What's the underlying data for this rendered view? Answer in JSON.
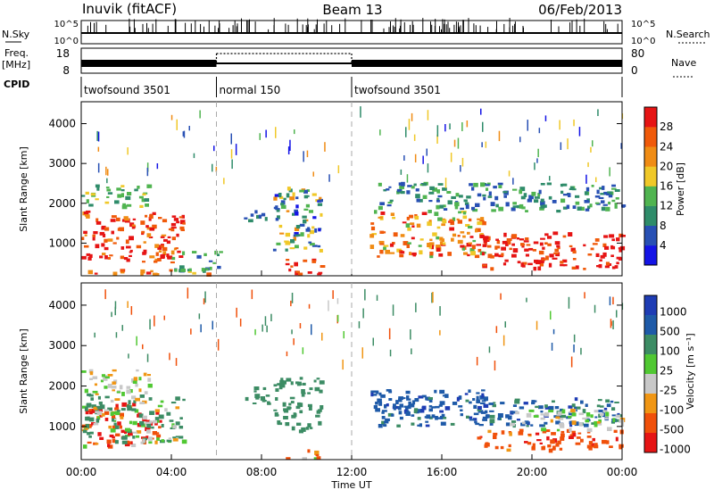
{
  "header": {
    "station": "Inuvik (fitACF)",
    "beam": "Beam 13",
    "date": "06/Feb/2013"
  },
  "top_panels": {
    "nsky_label": "N.Sky",
    "nsky_ticks": [
      "10^5",
      "10^0"
    ],
    "nsearch_label": "N.Search",
    "nsearch_ticks": [
      "10^5",
      "10^0"
    ],
    "freq_label": "Freq.",
    "freq_unit": "[MHz]",
    "freq_ticks": [
      "18",
      "8"
    ],
    "nave_label": "Nave",
    "nave_ticks": [
      "80",
      "0"
    ],
    "cpid_label": "CPID",
    "cpid_segments": [
      {
        "name": "twofsound 3501",
        "start": 0,
        "end": 6
      },
      {
        "name": "normal 150",
        "start": 6,
        "end": 12
      },
      {
        "name": "twofsound 3501",
        "start": 12,
        "end": 24
      }
    ]
  },
  "x_axis": {
    "label": "Time UT",
    "ticks": [
      "00:00",
      "04:00",
      "08:00",
      "12:00",
      "16:00",
      "20:00",
      "00:00"
    ]
  },
  "colors": {
    "power": [
      "#1414e6",
      "#2850b4",
      "#2f8c6a",
      "#50b450",
      "#f0c828",
      "#f08c14",
      "#f05a0a",
      "#e61414"
    ],
    "velocity": [
      "#e61414",
      "#f0500a",
      "#f09614",
      "#c8c8c8",
      "#50c832",
      "#3c8c64",
      "#1e5aa8",
      "#1e3cb4"
    ]
  },
  "chart_data": [
    {
      "type": "heatmap",
      "quantity": "Power",
      "ylabel": "Slant Range [km]",
      "xlabel": "",
      "colorbar_label": "Power [dB]",
      "colorbar_ticks": [
        "28",
        "24",
        "20",
        "16",
        "12",
        "8",
        "4"
      ],
      "y_ticks": [
        "1000",
        "2000",
        "3000",
        "4000"
      ],
      "xlim_hours": [
        0,
        24
      ],
      "ylim_km": [
        180,
        4550
      ],
      "zlim": [
        0,
        32
      ],
      "scatter_regions": [
        {
          "t": [
            0.0,
            4.5
          ],
          "r": [
            500,
            1800
          ],
          "level": 28,
          "spread": 6
        },
        {
          "t": [
            0.0,
            3.0
          ],
          "r": [
            1900,
            2450
          ],
          "level": 14,
          "spread": 6
        },
        {
          "t": [
            0.0,
            6.0
          ],
          "r": [
            200,
            320
          ],
          "level": 24,
          "spread": 6
        },
        {
          "t": [
            4.0,
            6.2
          ],
          "r": [
            300,
            800
          ],
          "level": 10,
          "spread": 6
        },
        {
          "t": [
            7.2,
            8.7
          ],
          "r": [
            1550,
            1950
          ],
          "level": 6,
          "spread": 4
        },
        {
          "t": [
            8.5,
            10.6
          ],
          "r": [
            800,
            2400
          ],
          "level": 12,
          "spread": 10
        },
        {
          "t": [
            9.0,
            10.7
          ],
          "r": [
            200,
            600
          ],
          "level": 28,
          "spread": 4
        },
        {
          "t": [
            12.8,
            17.8
          ],
          "r": [
            650,
            1800
          ],
          "level": 22,
          "spread": 8
        },
        {
          "t": [
            13.0,
            24.0
          ],
          "r": [
            1800,
            2500
          ],
          "level": 10,
          "spread": 6
        },
        {
          "t": [
            17.5,
            24.0
          ],
          "r": [
            350,
            1250
          ],
          "level": 29,
          "spread": 3
        },
        {
          "t": [
            0.5,
            24.0
          ],
          "r": [
            2500,
            4300
          ],
          "level": 12,
          "spread": 10
        }
      ]
    },
    {
      "type": "heatmap",
      "quantity": "Velocity",
      "ylabel": "Slant Range [km]",
      "xlabel": "Time UT",
      "colorbar_label": "Velocity [m s⁻¹]",
      "colorbar_ticks": [
        "1000",
        "500",
        "100",
        "25",
        "-25",
        "-100",
        "-500",
        "-1000"
      ],
      "y_ticks": [
        "1000",
        "2000",
        "3000",
        "4000"
      ],
      "xlim_hours": [
        0,
        24
      ],
      "ylim_km": [
        180,
        4550
      ],
      "zlim": [
        -1200,
        1200
      ],
      "scatter_regions": [
        {
          "t": [
            0.0,
            3.5
          ],
          "r": [
            500,
            1600
          ],
          "level": -400,
          "spread": 500
        },
        {
          "t": [
            0.0,
            4.5
          ],
          "r": [
            600,
            1800
          ],
          "level": 120,
          "spread": 200
        },
        {
          "t": [
            0.0,
            3.0
          ],
          "r": [
            1800,
            2400
          ],
          "level": 20,
          "spread": 80
        },
        {
          "t": [
            7.2,
            8.7
          ],
          "r": [
            1550,
            1950
          ],
          "level": 350,
          "spread": 150
        },
        {
          "t": [
            8.5,
            10.6
          ],
          "r": [
            800,
            2200
          ],
          "level": 300,
          "spread": 150
        },
        {
          "t": [
            9.0,
            10.5
          ],
          "r": [
            200,
            400
          ],
          "level": -150,
          "spread": 200
        },
        {
          "t": [
            12.8,
            18.0
          ],
          "r": [
            1300,
            1900
          ],
          "level": 800,
          "spread": 300
        },
        {
          "t": [
            13.0,
            24.0
          ],
          "r": [
            1000,
            1700
          ],
          "level": 700,
          "spread": 400
        },
        {
          "t": [
            17.5,
            24.0
          ],
          "r": [
            400,
            900
          ],
          "level": -350,
          "spread": 300
        },
        {
          "t": [
            19.0,
            24.0
          ],
          "r": [
            900,
            1400
          ],
          "level": 10,
          "spread": 40
        },
        {
          "t": [
            0.5,
            24.0
          ],
          "r": [
            2500,
            4300
          ],
          "level": 100,
          "spread": 500
        }
      ]
    }
  ]
}
